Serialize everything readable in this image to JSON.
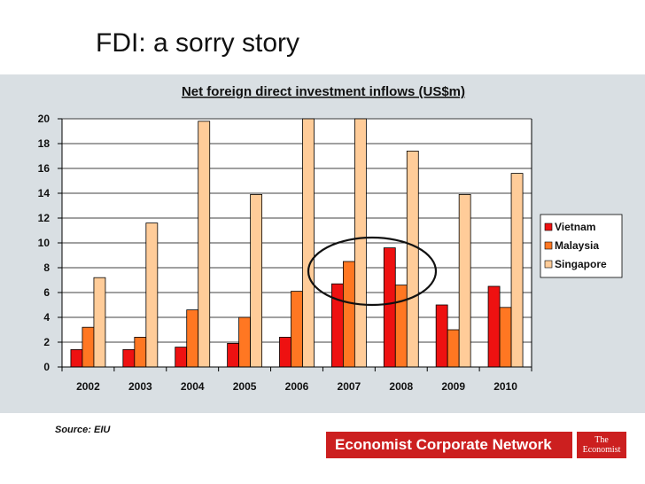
{
  "slide": {
    "title": "FDI: a sorry story",
    "source": "Source: EIU"
  },
  "branding": {
    "network": "Economist Corporate Network",
    "logo_line1": "The",
    "logo_line2": "Economist",
    "color": "#cc1f1f"
  },
  "chart_data": {
    "type": "bar",
    "title": "Net foreign direct investment inflows (US$m)",
    "xlabel": "",
    "ylabel": "",
    "categories": [
      "2002",
      "2003",
      "2004",
      "2005",
      "2006",
      "2007",
      "2008",
      "2009",
      "2010"
    ],
    "ylim": [
      0,
      20
    ],
    "yticks": [
      0,
      2,
      4,
      6,
      8,
      10,
      12,
      14,
      16,
      18,
      20
    ],
    "grid": true,
    "legend_position": "right",
    "series": [
      {
        "name": "Vietnam",
        "color": "#ee1111",
        "values": [
          1.4,
          1.4,
          1.6,
          1.9,
          2.4,
          6.7,
          9.6,
          5.0,
          6.5
        ]
      },
      {
        "name": "Malaysia",
        "color": "#ff7722",
        "values": [
          3.2,
          2.4,
          4.6,
          4.0,
          6.1,
          8.5,
          6.6,
          3.0,
          4.8
        ]
      },
      {
        "name": "Singapore",
        "color": "#ffcc99",
        "values": [
          7.2,
          11.6,
          19.8,
          13.9,
          20.4,
          20.4,
          17.4,
          13.9,
          15.6
        ]
      }
    ],
    "annotation": "circle around 2007 and 2008"
  }
}
